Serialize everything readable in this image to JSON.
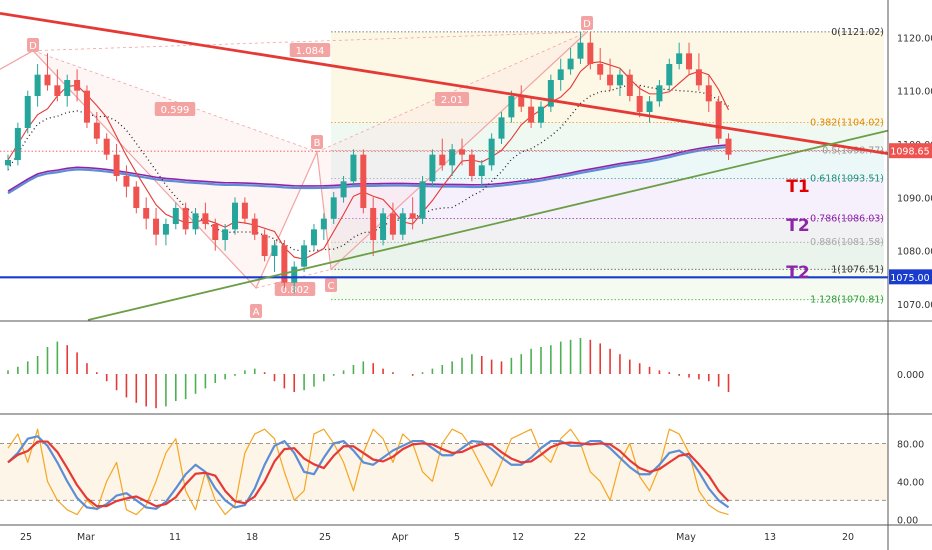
{
  "colors": {
    "up": "#26a69a",
    "up_bar": "#4caf50",
    "down": "#ef5350",
    "down_bar": "#e53935",
    "trend_red": "#e53935",
    "trend_green": "#6b9e47",
    "support_blue": "#1a3ccc",
    "ma_purple": "#8e24aa",
    "ma_blue": "#5c8ed6",
    "ma_red": "#e53935",
    "stoch_red": "#e53935",
    "stoch_blue": "#5c8ed6",
    "stoch_orange": "#f5a623",
    "pattern_pink": "#f4a3a3",
    "target_red": "#e00000",
    "target_purple": "#8e24aa"
  },
  "chart_data": {
    "type": "candlestick",
    "price_axis": {
      "ylim": [
        1067,
        1127
      ],
      "ticks": [
        "1070.00",
        "1080.00",
        "1090.00",
        "1100.00",
        "1110.00",
        "1120.00"
      ],
      "ticks_values": [
        1070,
        1080,
        1090,
        1100,
        1110,
        1120
      ]
    },
    "x_ticks": [
      "25",
      "Mar",
      "11",
      "18",
      "25",
      "Apr",
      "5",
      "12",
      "22",
      "May",
      "13",
      "20"
    ],
    "current_price": {
      "label": "1098.65",
      "value": 1098.65
    },
    "support_line": {
      "label": "1075.00",
      "value": 1075.0
    },
    "fib_levels": [
      {
        "label": "0(1121.02)",
        "value": 1121.02
      },
      {
        "label": "0.382(1104.02)",
        "value": 1104.02
      },
      {
        "label": "0.5(1098.77)",
        "value": 1098.77
      },
      {
        "label": "0.618(1093.51)",
        "value": 1093.51
      },
      {
        "label": "0.786(1086.03)",
        "value": 1086.03
      },
      {
        "label": "0.886(1081.58)",
        "value": 1081.58
      },
      {
        "label": "1(1076.51)",
        "value": 1076.51
      },
      {
        "label": "1.128(1070.81)",
        "value": 1070.81
      }
    ],
    "targets": [
      "T1",
      "T2",
      "T2"
    ],
    "pattern_points": [
      "D",
      "A",
      "B",
      "C",
      "D"
    ],
    "pattern_ratios": [
      "1.084",
      "0.599",
      "0.802",
      "2.01"
    ],
    "ohlc": [
      [
        1096,
        1098,
        1095,
        1097
      ],
      [
        1097,
        1104,
        1096,
        1103
      ],
      [
        1103,
        1110,
        1102,
        1109
      ],
      [
        1109,
        1115,
        1107,
        1113
      ],
      [
        1113,
        1117,
        1110,
        1111
      ],
      [
        1111,
        1114,
        1108,
        1109
      ],
      [
        1109,
        1113,
        1107,
        1112
      ],
      [
        1112,
        1114,
        1108,
        1110
      ],
      [
        1110,
        1111,
        1103,
        1104
      ],
      [
        1104,
        1106,
        1100,
        1101
      ],
      [
        1101,
        1102,
        1097,
        1098
      ],
      [
        1098,
        1100,
        1093,
        1094
      ],
      [
        1094,
        1096,
        1090,
        1092
      ],
      [
        1092,
        1093,
        1087,
        1088
      ],
      [
        1088,
        1090,
        1084,
        1086
      ],
      [
        1086,
        1088,
        1081,
        1083
      ],
      [
        1083,
        1086,
        1081,
        1085
      ],
      [
        1085,
        1089,
        1084,
        1088
      ],
      [
        1088,
        1089,
        1083,
        1084
      ],
      [
        1084,
        1088,
        1083,
        1087
      ],
      [
        1087,
        1089,
        1084,
        1085
      ],
      [
        1085,
        1086,
        1080,
        1082
      ],
      [
        1082,
        1085,
        1080,
        1084
      ],
      [
        1084,
        1090,
        1083,
        1089
      ],
      [
        1089,
        1090,
        1085,
        1086
      ],
      [
        1086,
        1087,
        1082,
        1083
      ],
      [
        1083,
        1084,
        1078,
        1079
      ],
      [
        1079,
        1082,
        1076,
        1081
      ],
      [
        1081,
        1082,
        1073,
        1074
      ],
      [
        1074,
        1078,
        1072,
        1077
      ],
      [
        1077,
        1082,
        1076,
        1081
      ],
      [
        1081,
        1085,
        1080,
        1084
      ],
      [
        1084,
        1087,
        1082,
        1086
      ],
      [
        1086,
        1091,
        1085,
        1090
      ],
      [
        1090,
        1094,
        1089,
        1093
      ],
      [
        1093,
        1099,
        1092,
        1098
      ],
      [
        1098,
        1099,
        1087,
        1088
      ],
      [
        1088,
        1090,
        1079,
        1082
      ],
      [
        1082,
        1088,
        1081,
        1087
      ],
      [
        1087,
        1089,
        1082,
        1083
      ],
      [
        1083,
        1088,
        1082,
        1087
      ],
      [
        1087,
        1090,
        1084,
        1086
      ],
      [
        1086,
        1094,
        1085,
        1093
      ],
      [
        1093,
        1099,
        1092,
        1098
      ],
      [
        1098,
        1101,
        1095,
        1096
      ],
      [
        1096,
        1100,
        1094,
        1099
      ],
      [
        1099,
        1101,
        1096,
        1098
      ],
      [
        1098,
        1099,
        1093,
        1094
      ],
      [
        1094,
        1097,
        1092,
        1096
      ],
      [
        1096,
        1102,
        1095,
        1101
      ],
      [
        1101,
        1106,
        1100,
        1105
      ],
      [
        1105,
        1110,
        1104,
        1109
      ],
      [
        1109,
        1111,
        1106,
        1107
      ],
      [
        1107,
        1109,
        1103,
        1104
      ],
      [
        1104,
        1108,
        1103,
        1107
      ],
      [
        1107,
        1113,
        1106,
        1112
      ],
      [
        1112,
        1116,
        1110,
        1114
      ],
      [
        1114,
        1118,
        1113,
        1116
      ],
      [
        1116,
        1121,
        1115,
        1119
      ],
      [
        1119,
        1121,
        1114,
        1115
      ],
      [
        1115,
        1118,
        1112,
        1113
      ],
      [
        1113,
        1116,
        1110,
        1111
      ],
      [
        1111,
        1114,
        1109,
        1113
      ],
      [
        1113,
        1114,
        1108,
        1109
      ],
      [
        1109,
        1111,
        1105,
        1106
      ],
      [
        1106,
        1109,
        1104,
        1108
      ],
      [
        1108,
        1112,
        1107,
        1111
      ],
      [
        1111,
        1116,
        1110,
        1115
      ],
      [
        1115,
        1119,
        1114,
        1117
      ],
      [
        1117,
        1119,
        1113,
        1114
      ],
      [
        1114,
        1117,
        1110,
        1111
      ],
      [
        1111,
        1113,
        1106,
        1108
      ],
      [
        1108,
        1109,
        1100,
        1101
      ],
      [
        1101,
        1102,
        1097,
        1098
      ]
    ],
    "macd_axis": {
      "ticks": [
        "0.000"
      ]
    },
    "macd_hist": [
      0.1,
      0.2,
      0.35,
      0.5,
      0.75,
      0.9,
      0.8,
      0.6,
      0.3,
      0.05,
      -0.2,
      -0.45,
      -0.65,
      -0.8,
      -0.9,
      -0.95,
      -0.9,
      -0.75,
      -0.7,
      -0.55,
      -0.4,
      -0.25,
      -0.15,
      -0.05,
      0.1,
      0.15,
      0.05,
      -0.2,
      -0.4,
      -0.5,
      -0.45,
      -0.35,
      -0.2,
      -0.05,
      0.1,
      0.25,
      0.35,
      0.3,
      0.15,
      0.05,
      0.0,
      -0.05,
      0.05,
      0.15,
      0.25,
      0.35,
      0.45,
      0.55,
      0.5,
      0.4,
      0.35,
      0.45,
      0.55,
      0.7,
      0.75,
      0.8,
      0.9,
      0.95,
      1.0,
      0.95,
      0.85,
      0.7,
      0.55,
      0.4,
      0.3,
      0.2,
      0.1,
      0.05,
      -0.05,
      -0.1,
      -0.15,
      -0.2,
      -0.35,
      -0.5
    ],
    "stoch_axis": {
      "ylim": [
        -5,
        110
      ],
      "ticks": [
        "0.00",
        "40.00",
        "80.00"
      ],
      "ticks_values": [
        0,
        40,
        80
      ]
    },
    "stoch_k": [
      60,
      80,
      90,
      85,
      70,
      50,
      30,
      15,
      10,
      12,
      20,
      30,
      25,
      15,
      10,
      12,
      25,
      40,
      55,
      60,
      40,
      25,
      15,
      10,
      20,
      45,
      70,
      85,
      80,
      60,
      40,
      55,
      75,
      85,
      80,
      65,
      55,
      60,
      70,
      75,
      80,
      85,
      80,
      70,
      65,
      70,
      80,
      85,
      78,
      70,
      60,
      55,
      60,
      70,
      80,
      85,
      80,
      75,
      80,
      85,
      80,
      70,
      60,
      50,
      45,
      50,
      65,
      75,
      70,
      60,
      40,
      25,
      15,
      10
    ],
    "stoch_fast": [
      75,
      90,
      60,
      95,
      40,
      20,
      10,
      5,
      20,
      10,
      40,
      60,
      10,
      5,
      15,
      40,
      70,
      85,
      30,
      10,
      50,
      20,
      5,
      15,
      70,
      90,
      95,
      85,
      50,
      20,
      30,
      90,
      95,
      80,
      60,
      30,
      70,
      95,
      85,
      60,
      90,
      80,
      50,
      40,
      80,
      95,
      90,
      75,
      55,
      35,
      60,
      85,
      90,
      95,
      70,
      60,
      85,
      95,
      80,
      50,
      40,
      20,
      60,
      80,
      45,
      30,
      55,
      95,
      90,
      70,
      30,
      15,
      8,
      5
    ]
  }
}
